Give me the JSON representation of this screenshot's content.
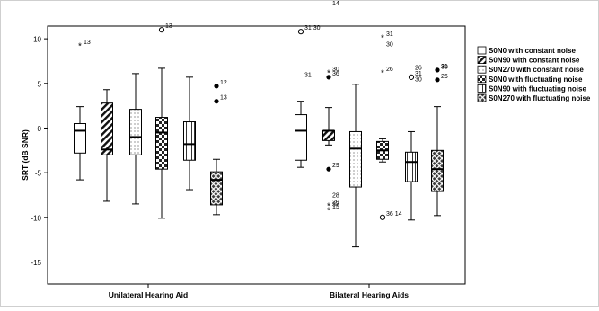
{
  "chart_data": {
    "type": "boxplot",
    "ylabel": "SRT (dB SNR)",
    "ylim": [
      -17,
      16
    ],
    "y_ticks": [
      15,
      10,
      5,
      0,
      -5,
      -10,
      -15
    ],
    "grid": false,
    "legend_position": "right",
    "categories": [
      "Unilateral Hearing Aid",
      "Bilateral Hearing Aids"
    ],
    "series": [
      {
        "name": "S0N0 with constant noise",
        "pattern": "plain"
      },
      {
        "name": "S0N90 with constant noise",
        "pattern": "diagonal"
      },
      {
        "name": "S0N270 with constant noise",
        "pattern": "dotted"
      },
      {
        "name": "S0N0 with fluctuating noise",
        "pattern": "checker"
      },
      {
        "name": "S0N90 with fluctuating noise",
        "pattern": "vertical"
      },
      {
        "name": "S0N270 with fluctuating noise",
        "pattern": "crosshatch"
      }
    ],
    "boxes": [
      {
        "group": 0,
        "series": 0,
        "whisker_low": -5.8,
        "q1": -2.8,
        "median": -0.3,
        "q3": 0.5,
        "whisker_high": 2.4,
        "outliers": [
          {
            "y": 9.2,
            "marker": "star",
            "label": "13"
          }
        ]
      },
      {
        "group": 0,
        "series": 1,
        "whisker_low": -8.2,
        "q1": -3.0,
        "median": -2.4,
        "q3": 2.8,
        "whisker_high": 4.3,
        "outliers": []
      },
      {
        "group": 0,
        "series": 2,
        "whisker_low": -8.5,
        "q1": -3.0,
        "median": -1.0,
        "q3": 2.1,
        "whisker_high": 6.1,
        "outliers": []
      },
      {
        "group": 0,
        "series": 3,
        "whisker_low": -10.1,
        "q1": -4.6,
        "median": -0.5,
        "q3": 1.2,
        "whisker_high": 6.7,
        "outliers": [
          {
            "y": 11.0,
            "marker": "circle",
            "label": "13"
          }
        ]
      },
      {
        "group": 0,
        "series": 4,
        "whisker_low": -6.9,
        "q1": -3.6,
        "median": -1.8,
        "q3": 0.7,
        "whisker_high": 5.7,
        "outliers": []
      },
      {
        "group": 0,
        "series": 5,
        "whisker_low": -9.7,
        "q1": -8.6,
        "median": -5.8,
        "q3": -4.9,
        "whisker_high": -3.5,
        "outliers": [
          {
            "y": 4.7,
            "marker": "dot",
            "label": "12"
          },
          {
            "y": 3.0,
            "marker": "dot",
            "label": "13"
          }
        ]
      },
      {
        "group": 1,
        "series": 0,
        "whisker_low": -4.4,
        "q1": -3.6,
        "median": -0.3,
        "q3": 1.5,
        "whisker_high": 3.0,
        "outliers": [
          {
            "y": 10.8,
            "marker": "circle",
            "label": "31 30"
          }
        ]
      },
      {
        "group": 1,
        "series": 1,
        "whisker_low": -1.9,
        "q1": -1.4,
        "median": -0.3,
        "q3": -0.3,
        "whisker_high": 2.3,
        "outliers": [
          {
            "y": 6.2,
            "marker": "star",
            "label": "30"
          },
          {
            "y": 5.7,
            "marker": "dot",
            "label": "36"
          },
          {
            "y": -4.6,
            "marker": "dot",
            "label": "29"
          },
          {
            "y": -8.7,
            "marker": "star",
            "label": "20"
          },
          {
            "y": -9.2,
            "marker": "star",
            "label": "15"
          }
        ]
      },
      {
        "group": 1,
        "series": 2,
        "whisker_low": -13.3,
        "q1": -6.6,
        "median": -2.3,
        "q3": -0.4,
        "whisker_high": 4.9,
        "outliers": []
      },
      {
        "group": 1,
        "series": 3,
        "whisker_low": -3.8,
        "q1": -3.5,
        "median": -2.5,
        "q3": -1.5,
        "whisker_high": -1.2,
        "outliers": [
          {
            "y": 10.1,
            "marker": "star",
            "label": "31"
          },
          {
            "y": 6.2,
            "marker": "star",
            "label": "26"
          },
          {
            "y": -10.0,
            "marker": "circle",
            "label": "36 14"
          }
        ]
      },
      {
        "group": 1,
        "series": 4,
        "whisker_low": -10.3,
        "q1": -6.0,
        "median": -3.8,
        "q3": -2.7,
        "whisker_high": -0.4,
        "outliers": [
          {
            "y": 5.7,
            "marker": "circle",
            "label": "31"
          }
        ]
      },
      {
        "group": 1,
        "series": 5,
        "whisker_low": -9.8,
        "q1": -7.1,
        "median": -4.6,
        "q3": -2.5,
        "whisker_high": 2.4,
        "outliers": [
          {
            "y": 6.5,
            "marker": "dot",
            "label": "31"
          },
          {
            "y": 5.4,
            "marker": "dot",
            "label": "26"
          }
        ]
      }
    ],
    "extra_labels": [
      {
        "y": 14.0,
        "box": 7,
        "text": "14"
      },
      {
        "y": 6.0,
        "box": 6,
        "text": "31"
      },
      {
        "y": -7.5,
        "box": 7,
        "text": "28"
      },
      {
        "y": -8.5,
        "box": 7,
        "text": "37"
      },
      {
        "y": 9.4,
        "box": 9,
        "text": "30"
      },
      {
        "y": 6.8,
        "box": 10,
        "text": "26"
      },
      {
        "y": 5.5,
        "box": 10,
        "text": "30"
      },
      {
        "y": 6.9,
        "box": 11,
        "text": "30"
      }
    ]
  }
}
